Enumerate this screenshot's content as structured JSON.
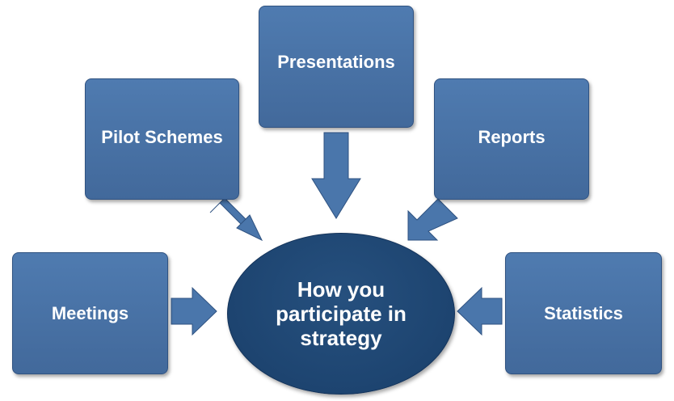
{
  "diagram": {
    "center": {
      "label": "How you participate in strategy"
    },
    "inputs": {
      "presentations": "Presentations",
      "pilot_schemes": "Pilot Schemes",
      "reports": "Reports",
      "meetings": "Meetings",
      "statistics": "Statistics"
    }
  },
  "colors": {
    "box_fill": "#4a76ab",
    "center_fill": "#1d4470",
    "text": "#ffffff"
  }
}
